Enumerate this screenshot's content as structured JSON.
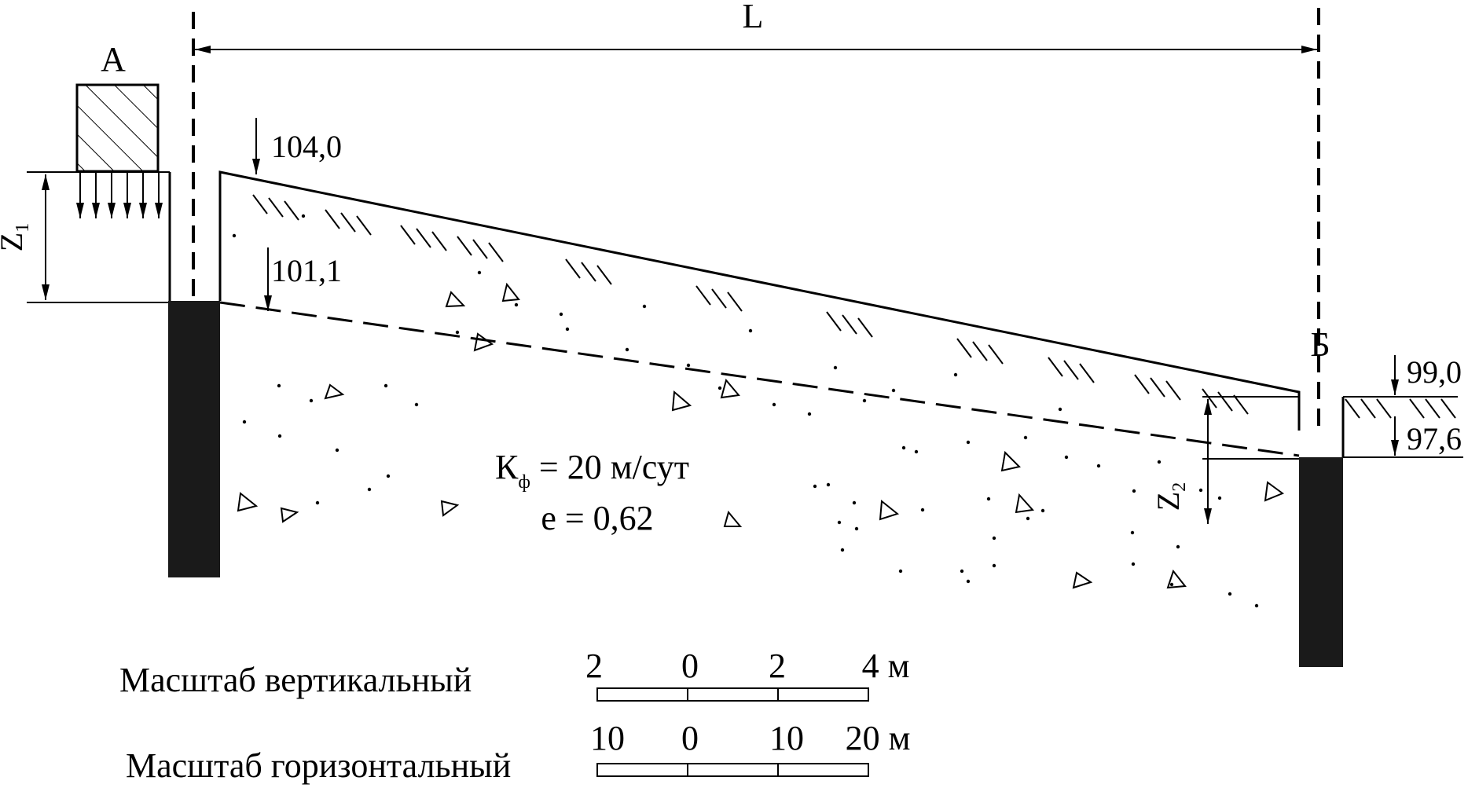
{
  "dimension": {
    "span": "L"
  },
  "points": {
    "left": "А",
    "right": "Б"
  },
  "elevations": {
    "ground_left": "104,0",
    "water_left": "101,1",
    "ground_right": "99,0",
    "water_right": "97,6"
  },
  "depths": {
    "z1": {
      "main": "Z",
      "sub": "1"
    },
    "z2": {
      "main": "Z",
      "sub": "2"
    }
  },
  "soil": {
    "kf_main": "К",
    "kf_sub": "ф",
    "kf_rest": " = 20 м/сут",
    "porosity": "е = 0,62"
  },
  "scales": {
    "vertical": {
      "label": "Масштаб вертикальный",
      "ticks": [
        "2",
        "0",
        "2",
        "4 м"
      ]
    },
    "horizontal": {
      "label": "Масштаб горизонтальный",
      "ticks": [
        "10",
        "0",
        "10",
        "20 м"
      ]
    }
  }
}
